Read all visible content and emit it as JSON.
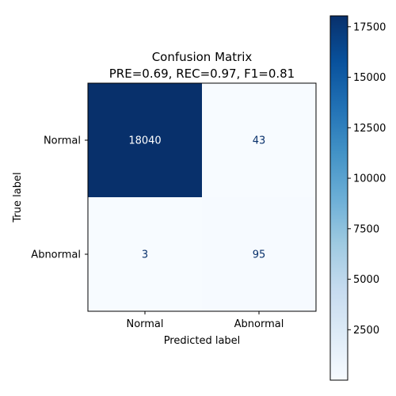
{
  "chart_data": {
    "type": "heatmap",
    "title": "Confusion Matrix",
    "subtitle": "PRE=0.69, REC=0.97, F1=0.81",
    "xlabel": "Predicted label",
    "ylabel": "True label",
    "x_categories": [
      "Normal",
      "Abnormal"
    ],
    "y_categories": [
      "Normal",
      "Abnormal"
    ],
    "matrix": [
      [
        18040,
        43
      ],
      [
        3,
        95
      ]
    ],
    "colormap": "Blues",
    "color_range": [
      3,
      18040
    ],
    "colorbar_ticks": [
      2500,
      5000,
      7500,
      10000,
      12500,
      15000,
      17500
    ]
  }
}
